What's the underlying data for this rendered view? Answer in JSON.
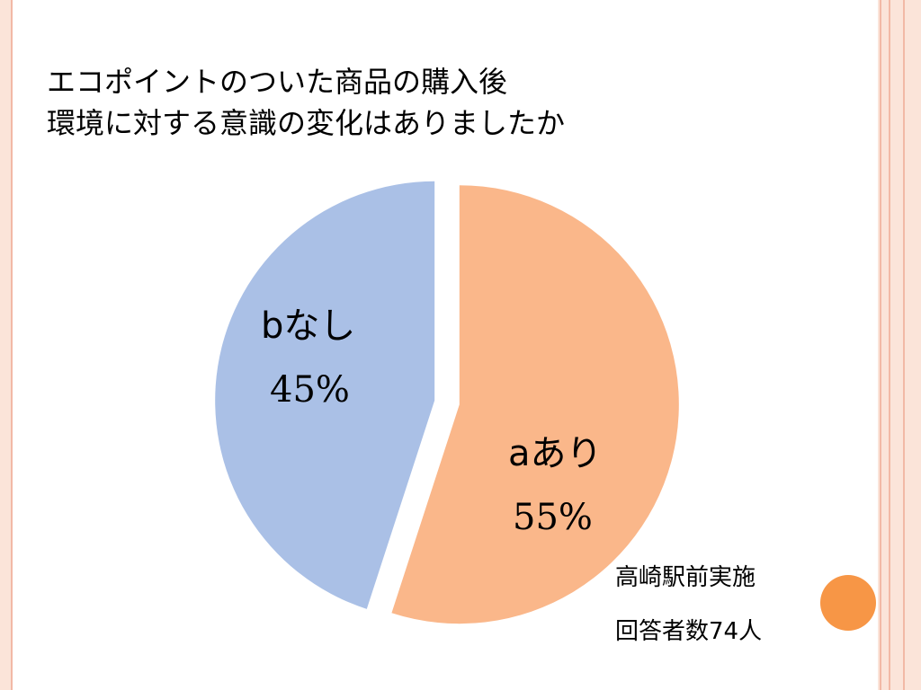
{
  "slide": {
    "title_lines": [
      "エコポイントのついた商品の購入後",
      "環境に対する意識の変化はありましたか"
    ],
    "notes": [
      "高崎駅前実施",
      "回答者数74人"
    ],
    "accent_color": "#f79646"
  },
  "chart_data": {
    "type": "pie",
    "title": "",
    "slices": [
      {
        "label": "aあり",
        "value": 55,
        "percent_label": "55%",
        "color": "#fab78a",
        "exploded": true
      },
      {
        "label": "bなし",
        "value": 45,
        "percent_label": "45%",
        "color": "#aac0e6",
        "exploded": true
      }
    ],
    "legend": "none"
  }
}
